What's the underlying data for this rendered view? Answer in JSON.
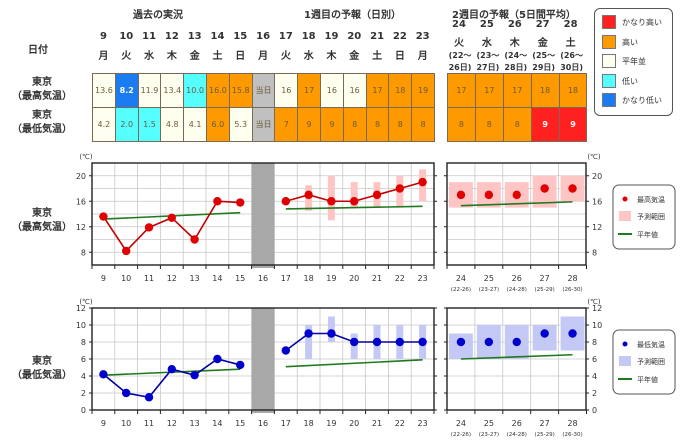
{
  "headers": {
    "past": "過去の実況",
    "week1": "1週目の予報（日別）",
    "week2": "2週目の予報（5日間平均）",
    "date_label": "日付"
  },
  "rows": {
    "high_label_1": "東京",
    "high_label_2": "（最高気温）",
    "low_label_1": "東京",
    "low_label_2": "（最低気温）"
  },
  "days": [
    {
      "num": "9",
      "dow": "月"
    },
    {
      "num": "10",
      "dow": "火"
    },
    {
      "num": "11",
      "dow": "水"
    },
    {
      "num": "12",
      "dow": "木"
    },
    {
      "num": "13",
      "dow": "金"
    },
    {
      "num": "14",
      "dow": "土"
    },
    {
      "num": "15",
      "dow": "日"
    },
    {
      "num": "16",
      "dow": "月"
    },
    {
      "num": "17",
      "dow": "火"
    },
    {
      "num": "18",
      "dow": "水"
    },
    {
      "num": "19",
      "dow": "木"
    },
    {
      "num": "20",
      "dow": "金"
    },
    {
      "num": "21",
      "dow": "土"
    },
    {
      "num": "22",
      "dow": "日"
    },
    {
      "num": "23",
      "dow": "月"
    }
  ],
  "week2_days": [
    {
      "num": "24",
      "dow": "火",
      "range1": "(22〜",
      "range2": "26日)",
      "short": "(22-26)"
    },
    {
      "num": "25",
      "dow": "水",
      "range1": "(23〜",
      "range2": "27日)",
      "short": "(23-27)"
    },
    {
      "num": "26",
      "dow": "木",
      "range1": "(24〜",
      "range2": "28日)",
      "short": "(24-28)"
    },
    {
      "num": "27",
      "dow": "金",
      "range1": "(25〜",
      "range2": "29日)",
      "short": "(25-29)"
    },
    {
      "num": "28",
      "dow": "土",
      "range1": "(26〜",
      "range2": "30日)",
      "short": "(26-30)"
    }
  ],
  "colors": {
    "very_high": "#ff2020",
    "high": "#ff9900",
    "normal": "#fffff0",
    "low": "#55ffff",
    "very_low": "#1a7cf0",
    "today": "#c0c0c0",
    "high_line": "#e00000",
    "low_line": "#0000cc",
    "normal_line": "#1f7a1f",
    "high_range": "#ffc4c4",
    "low_range": "#c4c8f5"
  },
  "table": {
    "today_label": "当日",
    "high": [
      {
        "v": "13.6",
        "c": "normal"
      },
      {
        "v": "8.2",
        "c": "very_low",
        "b": true
      },
      {
        "v": "11.9",
        "c": "normal"
      },
      {
        "v": "13.4",
        "c": "normal"
      },
      {
        "v": "10.0",
        "c": "low"
      },
      {
        "v": "16.0",
        "c": "high"
      },
      {
        "v": "15.8",
        "c": "high"
      },
      {
        "v": "当日",
        "c": "today"
      },
      {
        "v": "16",
        "c": "normal"
      },
      {
        "v": "17",
        "c": "high"
      },
      {
        "v": "16",
        "c": "normal"
      },
      {
        "v": "16",
        "c": "normal"
      },
      {
        "v": "17",
        "c": "high"
      },
      {
        "v": "18",
        "c": "high"
      },
      {
        "v": "19",
        "c": "high"
      }
    ],
    "low": [
      {
        "v": "4.2",
        "c": "normal"
      },
      {
        "v": "2.0",
        "c": "low"
      },
      {
        "v": "1.5",
        "c": "low"
      },
      {
        "v": "4.8",
        "c": "normal"
      },
      {
        "v": "4.1",
        "c": "normal"
      },
      {
        "v": "6.0",
        "c": "high"
      },
      {
        "v": "5.3",
        "c": "normal"
      },
      {
        "v": "当日",
        "c": "today"
      },
      {
        "v": "7",
        "c": "high"
      },
      {
        "v": "9",
        "c": "high"
      },
      {
        "v": "9",
        "c": "high"
      },
      {
        "v": "8",
        "c": "high"
      },
      {
        "v": "8",
        "c": "high"
      },
      {
        "v": "8",
        "c": "high"
      },
      {
        "v": "8",
        "c": "high"
      }
    ],
    "week2_high": [
      {
        "v": "17",
        "c": "high"
      },
      {
        "v": "17",
        "c": "high"
      },
      {
        "v": "17",
        "c": "high"
      },
      {
        "v": "18",
        "c": "high"
      },
      {
        "v": "18",
        "c": "high"
      }
    ],
    "week2_low": [
      {
        "v": "8",
        "c": "high"
      },
      {
        "v": "8",
        "c": "high"
      },
      {
        "v": "8",
        "c": "high"
      },
      {
        "v": "9",
        "c": "very_high",
        "b": true
      },
      {
        "v": "9",
        "c": "very_high",
        "b": true
      }
    ]
  },
  "legend_top": [
    {
      "label": "かなり高い",
      "c": "very_high"
    },
    {
      "label": "高い",
      "c": "high"
    },
    {
      "label": "平年並",
      "c": "normal"
    },
    {
      "label": "低い",
      "c": "low"
    },
    {
      "label": "かなり低い",
      "c": "very_low"
    }
  ],
  "chart_data": [
    {
      "type": "line",
      "title": "東京（最高気温）",
      "ylabel": "(℃)",
      "ylim": [
        6,
        22
      ],
      "yticks": [
        8,
        12,
        16,
        20
      ],
      "ytick_labels": [
        "8",
        "12",
        "16",
        "20"
      ],
      "x": [
        "9",
        "10",
        "11",
        "12",
        "13",
        "14",
        "15",
        "16",
        "17",
        "18",
        "19",
        "20",
        "21",
        "22",
        "23"
      ],
      "today_index": 7,
      "observed": [
        13.6,
        8.2,
        11.9,
        13.4,
        10.0,
        16.0,
        15.8
      ],
      "forecast": [
        16,
        17,
        16,
        16,
        17,
        18,
        19
      ],
      "forecast_range": [
        null,
        [
          14.5,
          18.5
        ],
        [
          13,
          20
        ],
        [
          15,
          19
        ],
        [
          15,
          19
        ],
        [
          15,
          20
        ],
        [
          16,
          21
        ]
      ],
      "normal_past": [
        13.2,
        14.2
      ],
      "normal_week1": [
        14.8,
        15.2
      ],
      "week2": {
        "x": [
          "24",
          "25",
          "26",
          "27",
          "28"
        ],
        "values": [
          17,
          17,
          17,
          18,
          18
        ],
        "range": [
          [
            15,
            19
          ],
          [
            15,
            19
          ],
          [
            15,
            19
          ],
          [
            15,
            20
          ],
          [
            16,
            20
          ]
        ],
        "normal": [
          15.3,
          15.9
        ]
      },
      "legend": {
        "point": "最高気温",
        "range": "予測範囲",
        "normal": "平年値"
      }
    },
    {
      "type": "line",
      "title": "東京（最低気温）",
      "ylabel": "(℃)",
      "ylim": [
        0,
        12
      ],
      "yticks": [
        0,
        2,
        4,
        6,
        8,
        10,
        12
      ],
      "ytick_labels": [
        "0",
        "2",
        "4",
        "6",
        "8",
        "10",
        "12"
      ],
      "x": [
        "9",
        "10",
        "11",
        "12",
        "13",
        "14",
        "15",
        "16",
        "17",
        "18",
        "19",
        "20",
        "21",
        "22",
        "23"
      ],
      "today_index": 7,
      "observed": [
        4.2,
        2.0,
        1.5,
        4.8,
        4.1,
        6.0,
        5.3
      ],
      "forecast": [
        7,
        9,
        9,
        8,
        8,
        8,
        8
      ],
      "forecast_range": [
        null,
        [
          6,
          10
        ],
        [
          8,
          11
        ],
        [
          6,
          9
        ],
        [
          6,
          10
        ],
        [
          6,
          10
        ],
        [
          6,
          10
        ]
      ],
      "normal_past": [
        4.1,
        4.8
      ],
      "normal_week1": [
        5.1,
        5.9
      ],
      "week2": {
        "x": [
          "24",
          "25",
          "26",
          "27",
          "28"
        ],
        "values": [
          8,
          8,
          8,
          9,
          9
        ],
        "range": [
          [
            6,
            9
          ],
          [
            6,
            10
          ],
          [
            6,
            10
          ],
          [
            7,
            10
          ],
          [
            7,
            11
          ]
        ],
        "normal": [
          6.0,
          6.5
        ]
      },
      "legend": {
        "point": "最低気温",
        "range": "予測範囲",
        "normal": "平年値"
      }
    }
  ]
}
